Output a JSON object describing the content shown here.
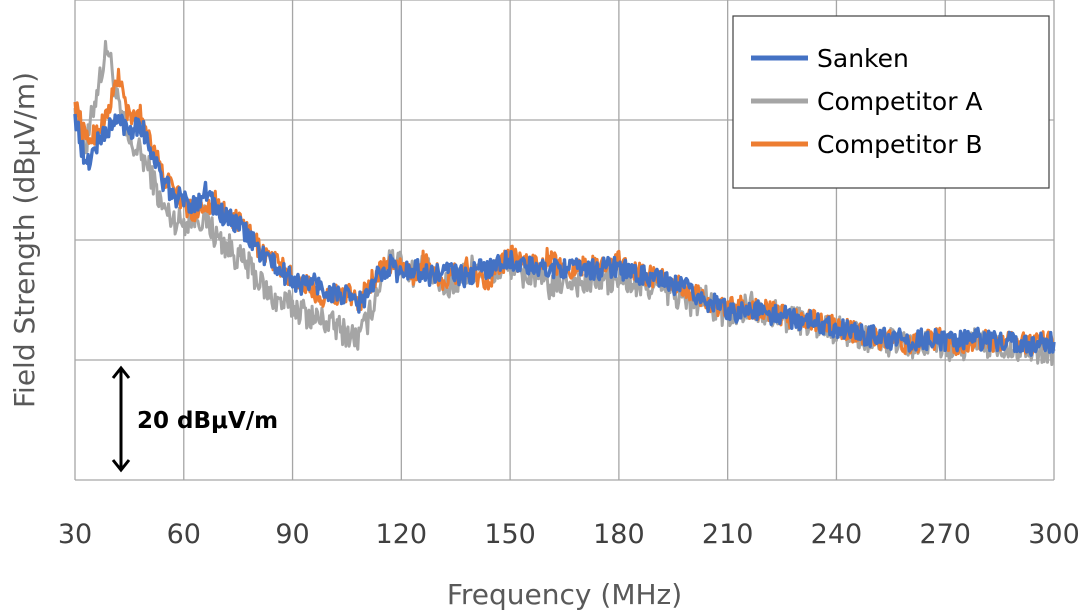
{
  "chart_data": {
    "type": "line",
    "xlabel": "Frequency (MHz)",
    "ylabel": "Field Strength (dBμV/m)",
    "xlim": [
      30,
      300
    ],
    "x_ticks": [
      "30",
      "60",
      "90",
      "120",
      "150",
      "180",
      "210",
      "240",
      "270",
      "300"
    ],
    "y_gridlines": 4,
    "y_tick_labels_shown": false,
    "grid": true,
    "legend_position": "top-right",
    "scale_annotation": "20 dBμV/m",
    "scale_annotation_value_db": 20,
    "series": [
      {
        "name": "Competitor A",
        "color": "#a5a5a5",
        "x": [
          30,
          33,
          36,
          39,
          42,
          45,
          48,
          51,
          54,
          57,
          60,
          63,
          66,
          69,
          72,
          75,
          78,
          81,
          84,
          87,
          90,
          93,
          96,
          99,
          102,
          105,
          108,
          111,
          114,
          117,
          120,
          123,
          126,
          129,
          132,
          135,
          138,
          141,
          144,
          147,
          150,
          153,
          156,
          159,
          162,
          165,
          168,
          171,
          174,
          177,
          180,
          183,
          186,
          189,
          192,
          195,
          198,
          201,
          204,
          207,
          210,
          213,
          216,
          219,
          222,
          225,
          228,
          231,
          234,
          237,
          240,
          243,
          246,
          249,
          252,
          255,
          258,
          261,
          264,
          267,
          270,
          273,
          276,
          279,
          282,
          285,
          288,
          291,
          294,
          297,
          300
        ],
        "y": [
          62.0,
          55.0,
          65.0,
          72.5,
          62.0,
          56.0,
          54.5,
          51.0,
          45.5,
          43.5,
          43.0,
          44.0,
          43.5,
          40.5,
          39.0,
          37.0,
          35.5,
          33.0,
          30.5,
          29.5,
          29.0,
          28.0,
          27.0,
          26.5,
          25.5,
          24.5,
          23.5,
          27.0,
          33.0,
          38.0,
          36.0,
          34.5,
          35.5,
          33.5,
          32.0,
          33.0,
          34.5,
          36.0,
          33.5,
          35.0,
          36.0,
          34.0,
          34.5,
          33.0,
          32.0,
          33.5,
          33.0,
          32.5,
          34.0,
          33.0,
          33.5,
          33.0,
          32.0,
          32.5,
          31.5,
          31.0,
          30.0,
          29.5,
          30.0,
          28.0,
          27.5,
          28.0,
          29.5,
          28.5,
          28.0,
          27.0,
          27.0,
          26.5,
          26.0,
          25.5,
          25.0,
          24.5,
          24.0,
          23.5,
          23.0,
          23.0,
          22.5,
          22.0,
          22.5,
          23.0,
          22.0,
          22.0,
          22.5,
          23.0,
          22.0,
          22.0,
          22.5,
          22.0,
          21.5,
          22.0,
          21.5
        ]
      },
      {
        "name": "Competitor B",
        "color": "#ed7d31",
        "x": [
          30,
          33,
          36,
          39,
          42,
          45,
          48,
          51,
          54,
          57,
          60,
          63,
          66,
          69,
          72,
          75,
          78,
          81,
          84,
          87,
          90,
          93,
          96,
          99,
          102,
          105,
          108,
          111,
          114,
          117,
          120,
          123,
          126,
          129,
          132,
          135,
          138,
          141,
          144,
          147,
          150,
          153,
          156,
          159,
          162,
          165,
          168,
          171,
          174,
          177,
          180,
          183,
          186,
          189,
          192,
          195,
          198,
          201,
          204,
          207,
          210,
          213,
          216,
          219,
          222,
          225,
          228,
          231,
          234,
          237,
          240,
          243,
          246,
          249,
          252,
          255,
          258,
          261,
          264,
          267,
          270,
          273,
          276,
          279,
          282,
          285,
          288,
          291,
          294,
          297,
          300
        ],
        "y": [
          63.0,
          56.5,
          58.0,
          61.0,
          67.5,
          60.0,
          61.0,
          57.0,
          51.0,
          48.5,
          46.0,
          44.5,
          46.0,
          46.5,
          44.0,
          43.0,
          41.0,
          38.5,
          37.0,
          35.5,
          33.5,
          33.0,
          31.5,
          30.5,
          31.0,
          31.5,
          29.0,
          32.5,
          35.0,
          36.0,
          35.5,
          34.0,
          36.5,
          35.0,
          33.0,
          34.5,
          35.5,
          34.0,
          33.5,
          35.5,
          37.5,
          36.0,
          36.0,
          37.0,
          36.5,
          35.0,
          35.5,
          36.0,
          35.5,
          36.5,
          36.5,
          35.0,
          34.5,
          34.0,
          33.5,
          32.5,
          32.0,
          31.0,
          30.0,
          29.0,
          28.5,
          29.0,
          28.5,
          28.5,
          28.0,
          27.5,
          27.0,
          27.0,
          26.5,
          26.0,
          25.5,
          25.0,
          24.5,
          24.0,
          23.5,
          23.5,
          23.0,
          22.5,
          23.0,
          23.5,
          23.5,
          22.5,
          23.0,
          23.5,
          23.0,
          23.0,
          23.5,
          23.0,
          22.5,
          23.0,
          23.0
        ]
      },
      {
        "name": "Sanken",
        "color": "#4472c4",
        "x": [
          30,
          33,
          36,
          39,
          42,
          45,
          48,
          51,
          54,
          57,
          60,
          63,
          66,
          69,
          72,
          75,
          78,
          81,
          84,
          87,
          90,
          93,
          96,
          99,
          102,
          105,
          108,
          111,
          114,
          117,
          120,
          123,
          126,
          129,
          132,
          135,
          138,
          141,
          144,
          147,
          150,
          153,
          156,
          159,
          162,
          165,
          168,
          171,
          174,
          177,
          180,
          183,
          186,
          189,
          192,
          195,
          198,
          201,
          204,
          207,
          210,
          213,
          216,
          219,
          222,
          225,
          228,
          231,
          234,
          237,
          240,
          243,
          246,
          249,
          252,
          255,
          258,
          261,
          264,
          267,
          270,
          273,
          276,
          279,
          282,
          285,
          288,
          291,
          294,
          297,
          300
        ],
        "y": [
          61.0,
          52.0,
          56.0,
          58.5,
          60.0,
          58.5,
          59.5,
          55.0,
          50.0,
          47.5,
          46.5,
          46.0,
          48.5,
          45.0,
          43.5,
          42.5,
          40.5,
          38.0,
          36.5,
          34.5,
          33.5,
          32.5,
          33.0,
          31.5,
          31.0,
          30.5,
          29.5,
          31.0,
          34.5,
          36.0,
          34.0,
          35.5,
          34.5,
          34.0,
          35.0,
          34.5,
          33.5,
          35.0,
          35.5,
          36.0,
          37.0,
          35.5,
          35.5,
          35.0,
          35.5,
          35.5,
          35.0,
          35.5,
          35.0,
          35.5,
          35.5,
          34.5,
          34.0,
          34.0,
          33.0,
          32.5,
          32.0,
          31.0,
          30.0,
          29.0,
          28.5,
          28.0,
          28.5,
          28.0,
          27.5,
          27.5,
          27.0,
          26.5,
          26.5,
          26.0,
          25.5,
          25.0,
          24.5,
          24.0,
          24.0,
          23.5,
          23.5,
          23.0,
          23.5,
          23.5,
          23.0,
          23.0,
          23.5,
          23.5,
          23.0,
          23.0,
          23.0,
          23.0,
          22.5,
          23.0,
          23.0
        ]
      }
    ],
    "legend_order": [
      "Sanken",
      "Competitor A",
      "Competitor B"
    ]
  }
}
